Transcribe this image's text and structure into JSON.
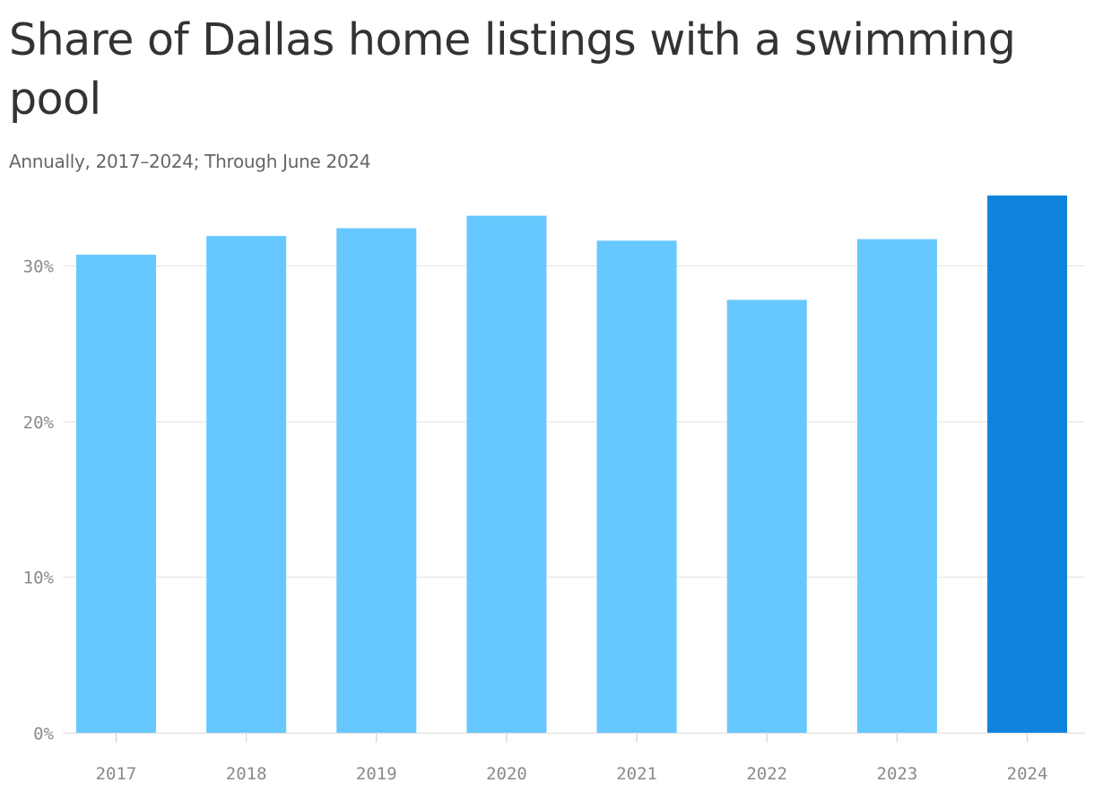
{
  "title": "Share of Dallas home listings with a swimming pool",
  "subtitle": "Annually, 2017–2024; Through June 2024",
  "colors": {
    "bar": "#66c8ff",
    "bar_highlight": "#0e84dd",
    "grid": "#e3e3e3",
    "axis_label": "#8a8a8a",
    "title": "#333333",
    "subtitle": "#666666"
  },
  "chart_data": {
    "type": "bar",
    "title": "Share of Dallas home listings with a swimming pool",
    "subtitle": "Annually, 2017–2024; Through June 2024",
    "categories": [
      "2017",
      "2018",
      "2019",
      "2020",
      "2021",
      "2022",
      "2023",
      "2024"
    ],
    "values": [
      30.7,
      31.9,
      32.4,
      33.2,
      31.6,
      27.8,
      31.7,
      34.5
    ],
    "highlight_category": "2024",
    "unit": "%",
    "xlabel": "",
    "ylabel": "",
    "ylim": [
      0,
      34.5
    ],
    "yticks": [
      0,
      10,
      20,
      30
    ],
    "ytick_labels": [
      "0%",
      "10%",
      "20%",
      "30%"
    ],
    "grid": true,
    "legend": "none"
  }
}
